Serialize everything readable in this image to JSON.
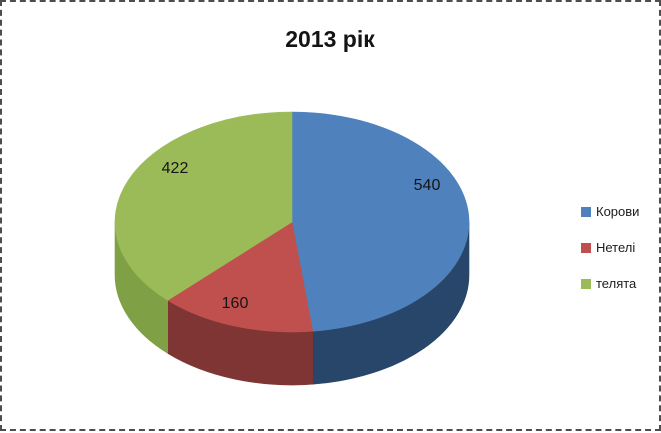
{
  "chart_data": {
    "type": "pie",
    "effect": "3d",
    "title": "2013 рік",
    "start_angle_deg": 0,
    "direction": "clockwise",
    "legend_position": "right",
    "series": [
      {
        "name": "Корови",
        "value": 540,
        "color": "#4F81BD",
        "side_color": "#274669"
      },
      {
        "name": "Нетелі",
        "value": 160,
        "color": "#C0504D",
        "side_color": "#7E3533"
      },
      {
        "name": "телята",
        "value": 422,
        "color": "#9BBB59",
        "side_color": "#7FA044"
      }
    ]
  },
  "legend": {
    "items": [
      {
        "label": "Корови",
        "color": "#4F81BD"
      },
      {
        "label": "Нетелі",
        "color": "#C0504D"
      },
      {
        "label": "телята",
        "color": "#9BBB59"
      }
    ]
  }
}
